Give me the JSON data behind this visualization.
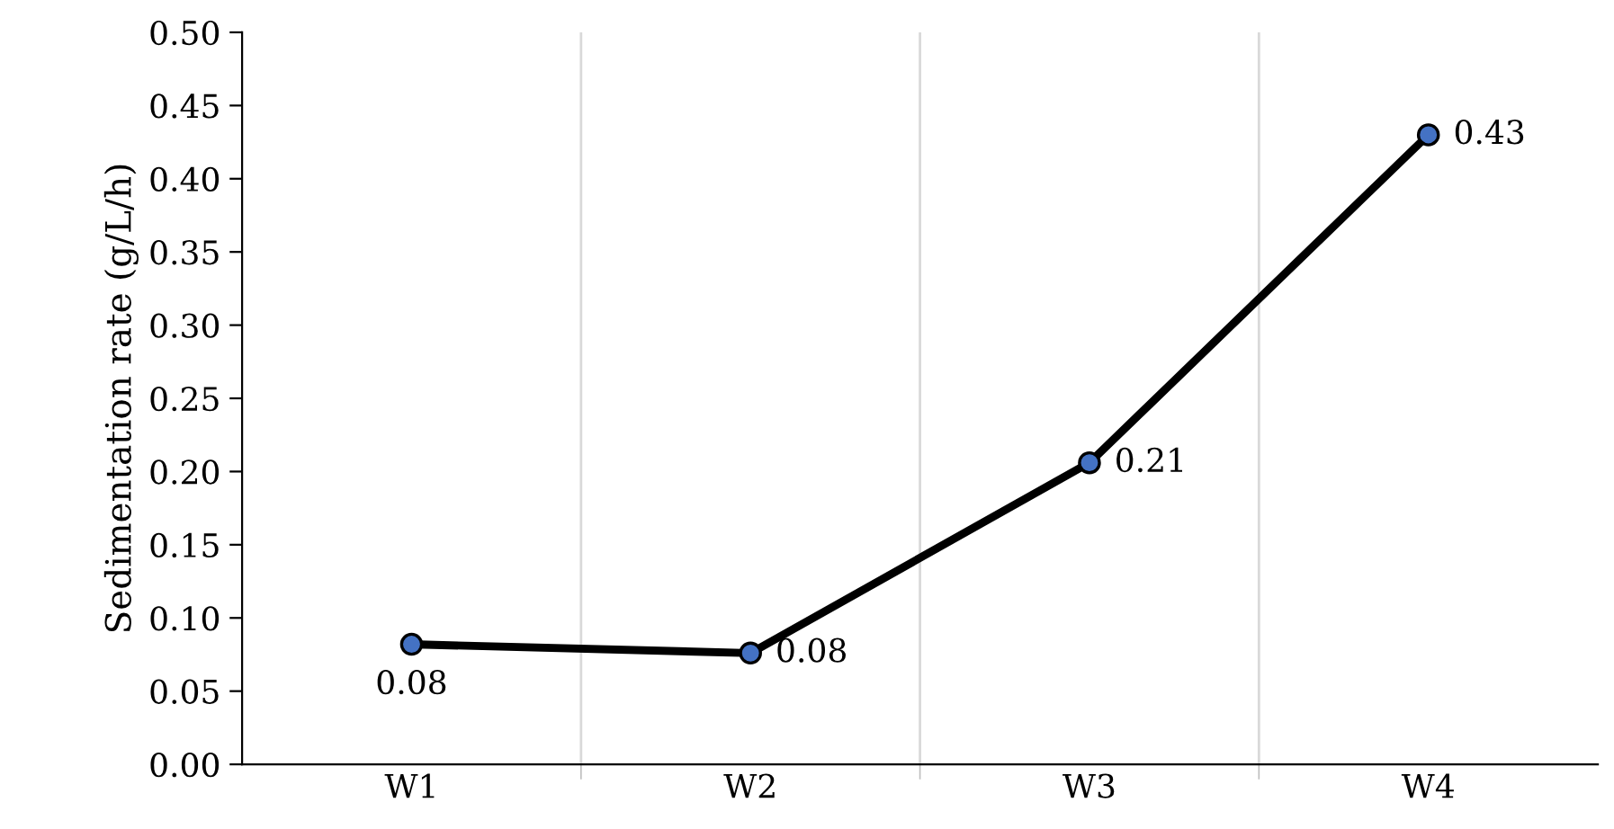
{
  "chart_data": {
    "type": "line",
    "ylabel": "Sedimentation rate (g/L/h)",
    "categories": [
      "W1",
      "W2",
      "W3",
      "W4"
    ],
    "series": [
      {
        "color": "#000000",
        "values": [
          0.082,
          0.076,
          0.206,
          0.43
        ],
        "value_labels": [
          "0.08",
          "0.08",
          "0.21",
          "0.43"
        ]
      }
    ],
    "marker": "circle",
    "line_style": "solid",
    "grid": "x",
    "legend": false,
    "ylim": [
      0,
      0.5
    ],
    "yticks": [
      {
        "value": 0,
        "label": "0.00"
      },
      {
        "value": 0.05,
        "label": "0.05"
      },
      {
        "value": 0.1,
        "label": "0.10"
      },
      {
        "value": 0.15,
        "label": "0.15"
      },
      {
        "value": 0.2,
        "label": "0.20"
      },
      {
        "value": 0.25,
        "label": "0.25"
      },
      {
        "value": 0.3,
        "label": "0.30"
      },
      {
        "value": 0.35,
        "label": "0.35"
      },
      {
        "value": 0.4,
        "label": "0.40"
      },
      {
        "value": 0.45,
        "label": "0.45"
      },
      {
        "value": 0.5,
        "label": "0.50"
      }
    ]
  }
}
